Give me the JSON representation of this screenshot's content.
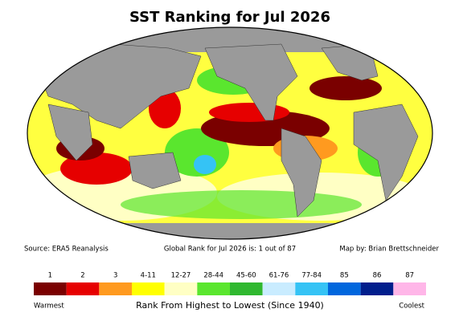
{
  "header": {
    "title": "SST Ranking for Jul 2026"
  },
  "footer": {
    "source": "Source: ERA5 Reanalysis",
    "global_rank": "Global Rank for Jul 2026 is: 1 out of 87",
    "credit": "Map by: Brian Brettschneider"
  },
  "legend": {
    "items": [
      {
        "label": "1",
        "color": "#7a0000"
      },
      {
        "label": "2",
        "color": "#e60000"
      },
      {
        "label": "3",
        "color": "#ff9a1f"
      },
      {
        "label": "4-11",
        "color": "#ffff00"
      },
      {
        "label": "12-27",
        "color": "#ffffc4"
      },
      {
        "label": "28-44",
        "color": "#5ae62e"
      },
      {
        "label": "45-60",
        "color": "#2fb82f"
      },
      {
        "label": "61-76",
        "color": "#c9ecff"
      },
      {
        "label": "77-84",
        "color": "#35c3f5"
      },
      {
        "label": "85",
        "color": "#0066dd"
      },
      {
        "label": "86",
        "color": "#001e8c"
      },
      {
        "label": "87",
        "color": "#ffb6e8"
      }
    ],
    "low_label": "Warmest",
    "high_label": "Coolest",
    "caption": "Rank From Highest to Lowest (Since 1940)"
  }
}
